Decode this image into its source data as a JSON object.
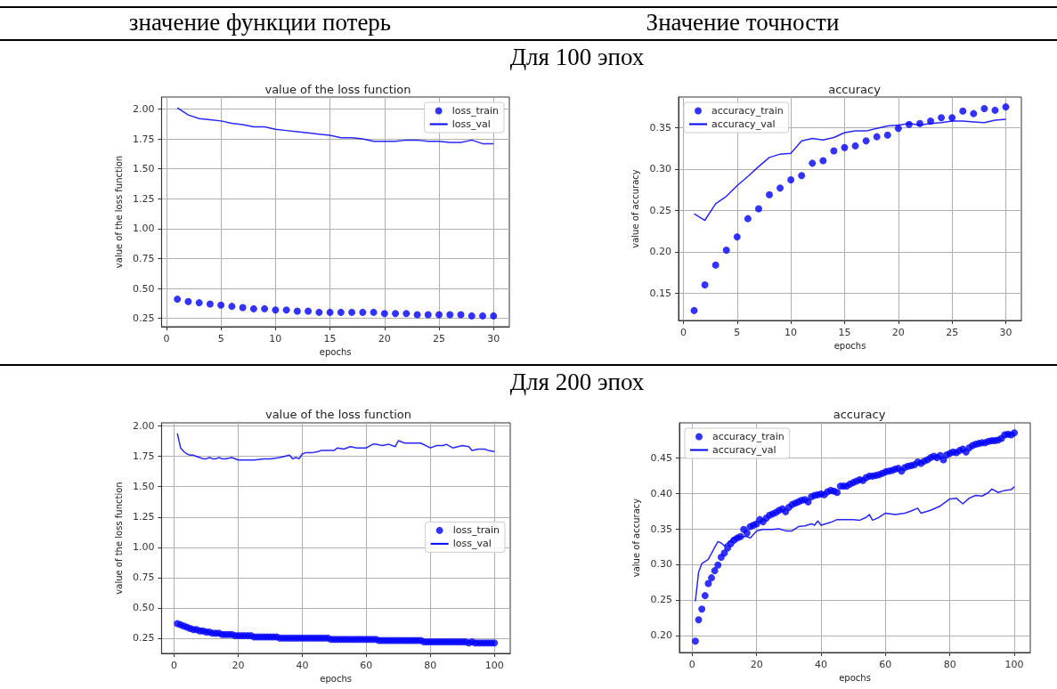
{
  "chart_data": [
    {
      "type": "line",
      "title": "value of the loss function",
      "xlabel": "epochs",
      "ylabel": "value of the loss function",
      "annotations": [
        "значение функции потерь",
        "Для 100 эпох"
      ],
      "x": [
        1,
        2,
        3,
        4,
        5,
        6,
        7,
        8,
        9,
        10,
        11,
        12,
        13,
        14,
        15,
        16,
        17,
        18,
        19,
        20,
        21,
        22,
        23,
        24,
        25,
        26,
        27,
        28,
        29,
        30
      ],
      "series": [
        {
          "name": "loss_train",
          "type": "scatter",
          "color": "#0000ff",
          "values": [
            0.41,
            0.39,
            0.38,
            0.37,
            0.36,
            0.35,
            0.34,
            0.33,
            0.33,
            0.32,
            0.32,
            0.31,
            0.31,
            0.3,
            0.3,
            0.3,
            0.3,
            0.3,
            0.3,
            0.29,
            0.29,
            0.29,
            0.28,
            0.28,
            0.28,
            0.28,
            0.28,
            0.27,
            0.27,
            0.27
          ]
        },
        {
          "name": "loss_val",
          "type": "line",
          "color": "#0000ff",
          "values": [
            2.01,
            1.95,
            1.92,
            1.91,
            1.9,
            1.88,
            1.87,
            1.85,
            1.85,
            1.83,
            1.82,
            1.81,
            1.8,
            1.79,
            1.78,
            1.76,
            1.76,
            1.75,
            1.73,
            1.73,
            1.73,
            1.74,
            1.74,
            1.73,
            1.73,
            1.72,
            1.72,
            1.74,
            1.71,
            1.71
          ]
        }
      ],
      "xlim": [
        -0.45,
        31.45
      ],
      "xticks": [
        0,
        5,
        10,
        15,
        20,
        25,
        30
      ],
      "ylim": [
        0.18,
        2.1
      ],
      "yticks": [
        0.25,
        {
          "value": 0.5,
          "label": "0.50"
        },
        0.75,
        {
          "value": 1,
          "label": "1.00"
        },
        1.25,
        {
          "value": 1.5,
          "label": "1.50"
        },
        1.75,
        {
          "value": 2,
          "label": "2.00"
        }
      ],
      "grid": true,
      "legend": "top right"
    },
    {
      "type": "line",
      "title": "accuracy",
      "xlabel": "epochs",
      "ylabel": "value of accuracy",
      "annotations": [
        "Значение точности"
      ],
      "x": [
        1,
        2,
        3,
        4,
        5,
        6,
        7,
        8,
        9,
        10,
        11,
        12,
        13,
        14,
        15,
        16,
        17,
        18,
        19,
        20,
        21,
        22,
        23,
        24,
        25,
        26,
        27,
        28,
        29,
        30
      ],
      "series": [
        {
          "name": "accuracy_train",
          "type": "scatter",
          "color": "#0000ff",
          "values": [
            0.129,
            0.16,
            0.184,
            0.202,
            0.218,
            0.24,
            0.252,
            0.269,
            0.277,
            0.287,
            0.292,
            0.307,
            0.31,
            0.322,
            0.326,
            0.328,
            0.334,
            0.339,
            0.341,
            0.349,
            0.354,
            0.355,
            0.358,
            0.362,
            0.362,
            0.37,
            0.367,
            0.373,
            0.371,
            0.375
          ]
        },
        {
          "name": "accuracy_val",
          "type": "line",
          "color": "#0000ff",
          "values": [
            0.246,
            0.238,
            0.258,
            0.267,
            0.28,
            0.291,
            0.303,
            0.314,
            0.318,
            0.319,
            0.334,
            0.337,
            0.335,
            0.338,
            0.344,
            0.346,
            0.346,
            0.349,
            0.352,
            0.353,
            0.355,
            0.353,
            0.355,
            0.356,
            0.358,
            0.358,
            0.357,
            0.356,
            0.359,
            0.36
          ]
        }
      ],
      "xlim": [
        -0.45,
        31.45
      ],
      "xticks": [
        0,
        5,
        10,
        15,
        20,
        25,
        30
      ],
      "ylim": [
        0.117,
        0.387
      ],
      "yticks": [
        0.15,
        {
          "value": 0.2,
          "label": "0.20"
        },
        0.25,
        {
          "value": 0.3,
          "label": "0.30"
        },
        0.35
      ],
      "grid": true,
      "legend": "top left"
    },
    {
      "type": "line",
      "title": "value of the loss function",
      "xlabel": "epochs",
      "ylabel": "value of the loss function",
      "annotations": [
        "Для 200 эпох"
      ],
      "x": [
        1,
        2,
        3,
        4,
        5,
        6,
        7,
        8,
        9,
        10,
        11,
        12,
        13,
        14,
        15,
        16,
        17,
        18,
        19,
        20,
        21,
        22,
        23,
        24,
        25,
        26,
        27,
        28,
        29,
        30,
        31,
        32,
        33,
        34,
        35,
        36,
        37,
        38,
        39,
        40,
        41,
        42,
        43,
        44,
        45,
        46,
        47,
        48,
        49,
        50,
        51,
        52,
        53,
        54,
        55,
        56,
        57,
        58,
        59,
        60,
        61,
        62,
        63,
        64,
        65,
        66,
        67,
        68,
        69,
        70,
        71,
        72,
        73,
        74,
        75,
        76,
        77,
        78,
        79,
        80,
        81,
        82,
        83,
        84,
        85,
        86,
        87,
        88,
        89,
        90,
        91,
        92,
        93,
        94,
        95,
        96,
        97,
        98,
        99,
        100
      ],
      "series": [
        {
          "name": "loss_train",
          "type": "scatter",
          "color": "#0000ff",
          "values": [
            0.37,
            0.36,
            0.35,
            0.34,
            0.33,
            0.32,
            0.32,
            0.31,
            0.31,
            0.3,
            0.3,
            0.29,
            0.29,
            0.29,
            0.28,
            0.28,
            0.28,
            0.28,
            0.27,
            0.27,
            0.27,
            0.27,
            0.27,
            0.27,
            0.26,
            0.26,
            0.26,
            0.26,
            0.26,
            0.26,
            0.26,
            0.26,
            0.25,
            0.25,
            0.25,
            0.25,
            0.25,
            0.25,
            0.25,
            0.25,
            0.25,
            0.25,
            0.25,
            0.25,
            0.25,
            0.25,
            0.25,
            0.25,
            0.24,
            0.24,
            0.24,
            0.24,
            0.24,
            0.24,
            0.24,
            0.24,
            0.24,
            0.24,
            0.24,
            0.24,
            0.24,
            0.24,
            0.24,
            0.23,
            0.23,
            0.23,
            0.23,
            0.23,
            0.23,
            0.23,
            0.23,
            0.23,
            0.23,
            0.23,
            0.23,
            0.23,
            0.23,
            0.22,
            0.22,
            0.22,
            0.22,
            0.22,
            0.22,
            0.22,
            0.22,
            0.22,
            0.22,
            0.22,
            0.22,
            0.22,
            0.22,
            0.21,
            0.22,
            0.21,
            0.21,
            0.21,
            0.21,
            0.21,
            0.21,
            0.21
          ]
        },
        {
          "name": "loss_val",
          "type": "line",
          "color": "#0000ff",
          "x": [
            1,
            2,
            3,
            4,
            5,
            6,
            7,
            8,
            9,
            10,
            11,
            12,
            13,
            14,
            15,
            16,
            18,
            20,
            22,
            25,
            28,
            30,
            33,
            36,
            37,
            38,
            39,
            40,
            41,
            43,
            45,
            46,
            48,
            50,
            51,
            53,
            55,
            57,
            60,
            62,
            63,
            65,
            67,
            69,
            70,
            72,
            75,
            77,
            80,
            82,
            84,
            85,
            87,
            90,
            92,
            93,
            95,
            97,
            98,
            100
          ],
          "values": [
            1.94,
            1.82,
            1.79,
            1.77,
            1.76,
            1.76,
            1.75,
            1.74,
            1.73,
            1.73,
            1.74,
            1.73,
            1.73,
            1.74,
            1.73,
            1.73,
            1.74,
            1.72,
            1.72,
            1.72,
            1.73,
            1.73,
            1.74,
            1.76,
            1.73,
            1.74,
            1.73,
            1.77,
            1.78,
            1.78,
            1.79,
            1.8,
            1.8,
            1.8,
            1.82,
            1.81,
            1.83,
            1.82,
            1.82,
            1.85,
            1.85,
            1.84,
            1.85,
            1.83,
            1.88,
            1.86,
            1.86,
            1.86,
            1.82,
            1.84,
            1.84,
            1.85,
            1.82,
            1.84,
            1.83,
            1.8,
            1.81,
            1.81,
            1.8,
            1.79
          ]
        }
      ],
      "xlim": [
        -3.95,
        104.95
      ],
      "xticks": [
        0,
        20,
        40,
        60,
        80,
        100
      ],
      "ylim": [
        0.124,
        2.027
      ],
      "yticks": [
        0.25,
        {
          "value": 0.5,
          "label": "0.50"
        },
        0.75,
        {
          "value": 1,
          "label": "1.00"
        },
        1.25,
        {
          "value": 1.5,
          "label": "1.50"
        },
        1.75,
        {
          "value": 2,
          "label": "2.00"
        }
      ],
      "grid": true,
      "legend": "right"
    },
    {
      "type": "line",
      "title": "accuracy",
      "xlabel": "epochs",
      "ylabel": "value of accuracy",
      "x": [
        1,
        2,
        3,
        4,
        5,
        6,
        7,
        8,
        9,
        10,
        11,
        12,
        13,
        14,
        15,
        16,
        17,
        18,
        19,
        20,
        21,
        22,
        23,
        24,
        25,
        26,
        27,
        28,
        29,
        30,
        31,
        32,
        33,
        34,
        35,
        36,
        37,
        38,
        39,
        40,
        41,
        42,
        43,
        44,
        45,
        46,
        47,
        48,
        49,
        50,
        51,
        52,
        53,
        54,
        55,
        56,
        57,
        58,
        59,
        60,
        61,
        62,
        63,
        64,
        65,
        66,
        67,
        68,
        69,
        70,
        71,
        72,
        73,
        74,
        75,
        76,
        77,
        78,
        79,
        80,
        81,
        82,
        83,
        84,
        85,
        86,
        87,
        88,
        89,
        90,
        91,
        92,
        93,
        94,
        95,
        96,
        97,
        98,
        99,
        100
      ],
      "series": [
        {
          "name": "accuracy_train",
          "type": "scatter",
          "color": "#0000ff",
          "values": [
            0.192,
            0.222,
            0.237,
            0.256,
            0.273,
            0.281,
            0.291,
            0.299,
            0.31,
            0.316,
            0.323,
            0.329,
            0.334,
            0.337,
            0.339,
            0.349,
            0.344,
            0.353,
            0.355,
            0.357,
            0.363,
            0.36,
            0.365,
            0.369,
            0.371,
            0.373,
            0.376,
            0.378,
            0.374,
            0.38,
            0.384,
            0.386,
            0.388,
            0.39,
            0.391,
            0.388,
            0.395,
            0.397,
            0.398,
            0.399,
            0.398,
            0.402,
            0.404,
            0.403,
            0.401,
            0.41,
            0.41,
            0.41,
            0.413,
            0.415,
            0.417,
            0.419,
            0.418,
            0.422,
            0.424,
            0.424,
            0.425,
            0.426,
            0.428,
            0.43,
            0.431,
            0.432,
            0.434,
            0.435,
            0.431,
            0.436,
            0.438,
            0.439,
            0.44,
            0.444,
            0.442,
            0.445,
            0.447,
            0.45,
            0.452,
            0.45,
            0.453,
            0.447,
            0.454,
            0.456,
            0.458,
            0.457,
            0.46,
            0.462,
            0.458,
            0.464,
            0.467,
            0.469,
            0.47,
            0.471,
            0.471,
            0.473,
            0.474,
            0.474,
            0.475,
            0.477,
            0.482,
            0.483,
            0.482,
            0.485
          ]
        },
        {
          "name": "accuracy_val",
          "type": "line",
          "color": "#0000ff",
          "x": [
            1,
            2,
            3,
            5,
            7,
            8,
            9,
            10,
            11,
            13,
            15,
            17,
            18,
            20,
            22,
            25,
            27,
            29,
            31,
            33,
            35,
            37,
            38,
            39,
            40,
            43,
            45,
            50,
            52,
            54,
            55,
            56,
            57,
            58,
            60,
            63,
            66,
            68,
            70,
            71,
            74,
            77,
            80,
            82,
            84,
            86,
            88,
            90,
            92,
            93,
            95,
            97,
            99,
            100
          ],
          "values": [
            0.248,
            0.289,
            0.301,
            0.307,
            0.324,
            0.332,
            0.33,
            0.326,
            0.33,
            0.338,
            0.339,
            0.339,
            0.337,
            0.347,
            0.349,
            0.349,
            0.35,
            0.347,
            0.347,
            0.353,
            0.354,
            0.357,
            0.355,
            0.361,
            0.355,
            0.359,
            0.363,
            0.363,
            0.362,
            0.366,
            0.37,
            0.362,
            0.364,
            0.366,
            0.372,
            0.37,
            0.372,
            0.375,
            0.379,
            0.372,
            0.376,
            0.382,
            0.392,
            0.393,
            0.385,
            0.393,
            0.397,
            0.396,
            0.401,
            0.406,
            0.401,
            0.404,
            0.405,
            0.409
          ]
        }
      ],
      "xlim": [
        -3.95,
        104.95
      ],
      "xticks": [
        0,
        20,
        40,
        60,
        80,
        100
      ],
      "ylim": [
        0.176,
        0.499
      ],
      "yticks": [
        {
          "value": 0.2,
          "label": "0.20"
        },
        0.25,
        {
          "value": 0.3,
          "label": "0.30"
        },
        0.35,
        {
          "value": 0.4,
          "label": "0.40"
        },
        0.45
      ],
      "grid": true,
      "legend": "top left"
    }
  ]
}
